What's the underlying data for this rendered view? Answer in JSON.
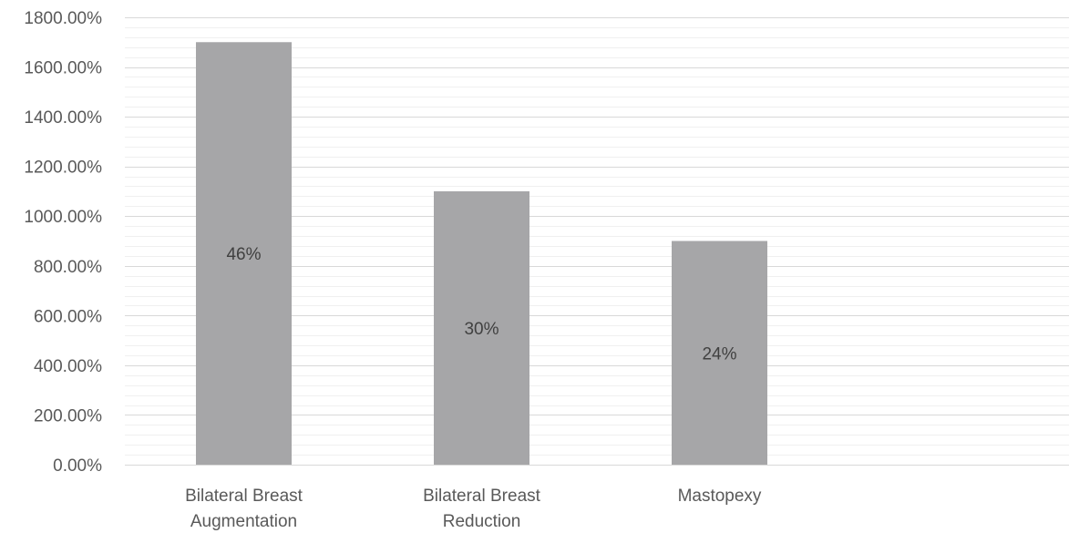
{
  "chart_data": {
    "type": "bar",
    "categories": [
      "Bilateral Breast Augmentation",
      "Bilateral Breast Reduction",
      "Mastopexy"
    ],
    "category_lines": [
      [
        "Bilateral Breast",
        "Augmentation"
      ],
      [
        "Bilateral Breast",
        "Reduction"
      ],
      [
        "Mastopexy"
      ]
    ],
    "values": [
      1700,
      1100,
      900
    ],
    "data_labels": [
      "46%",
      "30%",
      "24%"
    ],
    "ylim": [
      0,
      1800
    ],
    "yticks": [
      0,
      200,
      400,
      600,
      800,
      1000,
      1200,
      1400,
      1600,
      1800
    ],
    "ytick_labels": [
      "0.00%",
      "200.00%",
      "400.00%",
      "600.00%",
      "800.00%",
      "1000.00%",
      "1200.00%",
      "1400.00%",
      "1600.00%",
      "1800.00%"
    ],
    "minor_grid_step": 40,
    "grid": true,
    "legend": "none",
    "title": "",
    "xlabel": "",
    "ylabel": "",
    "colors": {
      "bar": "#a6a6a8",
      "major_grid": "#d9d9d9",
      "minor_grid": "#f0f0f0",
      "axis": "#d9d9d9"
    }
  }
}
